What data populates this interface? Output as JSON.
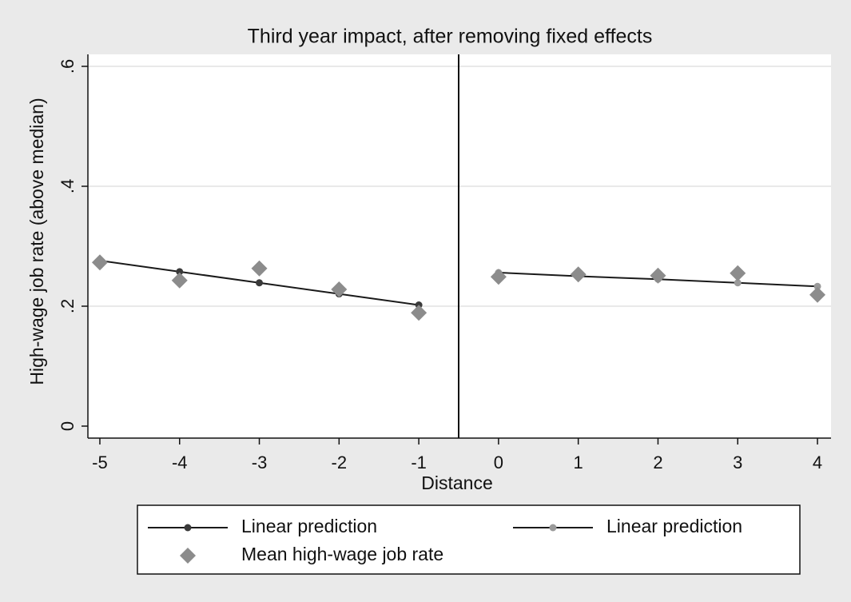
{
  "chart_data": {
    "type": "line",
    "title": "Third year impact, after removing fixed effects",
    "x_label": "Distance",
    "y_label": "High-wage job rate (above median)",
    "xlim": [
      -5.15,
      4.17
    ],
    "ylim": [
      -0.02,
      0.62
    ],
    "xticks": [
      -5,
      -4,
      -3,
      -2,
      -1,
      0,
      1,
      2,
      3,
      4
    ],
    "yticks": [
      0,
      {
        "value": 0.2,
        "label": ".2"
      },
      {
        "value": 0.4,
        "label": ".4"
      },
      {
        "value": 0.6,
        "label": ".6"
      }
    ],
    "grid": true,
    "xline": -0.5,
    "series": [
      {
        "name": "Linear prediction",
        "style": "line",
        "color": "#3a3a3a",
        "line_color": "#1a1a1a",
        "x": [
          -5,
          -4,
          -3,
          -2,
          -1
        ],
        "values": [
          0.276,
          0.2575,
          0.239,
          0.2205,
          0.202
        ]
      },
      {
        "name": "Linear prediction",
        "style": "line",
        "color": "#9a9a9a",
        "line_color": "#1a1a1a",
        "x": [
          0,
          1,
          2,
          3,
          4
        ],
        "values": [
          0.256,
          0.25,
          0.245,
          0.239,
          0.233
        ]
      },
      {
        "name": "Mean high-wage job rate",
        "style": "scatter",
        "color": "#8c8c8c",
        "x": [
          -5,
          -4,
          -3,
          -2,
          -1,
          0,
          1,
          2,
          3,
          4
        ],
        "values": [
          0.273,
          0.243,
          0.263,
          0.228,
          0.189,
          0.249,
          0.253,
          0.251,
          0.255,
          0.219
        ]
      }
    ]
  }
}
